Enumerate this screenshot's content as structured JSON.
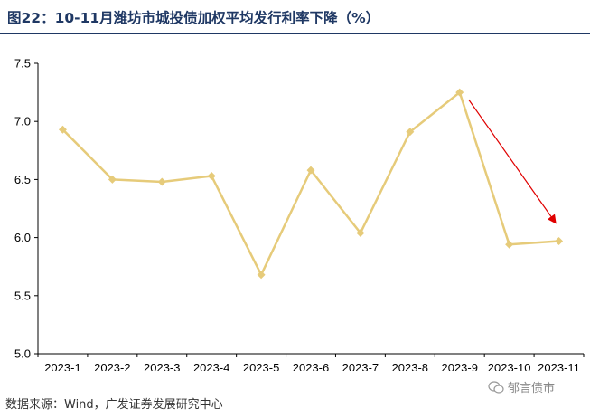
{
  "header": {
    "title": "图22：10-11月潍坊市城投债加权平均发行利率下降（%）"
  },
  "footer": {
    "source": "数据来源：Wind，广发证券发展研究中心",
    "watermark": "郁言债市"
  },
  "chart_data": {
    "type": "line",
    "title": "",
    "xlabel": "",
    "ylabel": "",
    "categories": [
      "2023-1",
      "2023-2",
      "2023-3",
      "2023-4",
      "2023-5",
      "2023-6",
      "2023-7",
      "2023-8",
      "2023-9",
      "2023-10",
      "2023-11"
    ],
    "series": [
      {
        "values": [
          6.93,
          6.5,
          6.48,
          6.53,
          5.68,
          6.58,
          6.04,
          6.91,
          7.25,
          5.94,
          5.97
        ]
      }
    ],
    "ylim": [
      5.0,
      7.5
    ],
    "yticks": [
      "5.0",
      "5.5",
      "6.0",
      "6.5",
      "7.0",
      "7.5"
    ],
    "grid": false,
    "line_color": "#e6cb7a",
    "arrow_color": "#e00000",
    "annotation": {
      "type": "arrow",
      "from": [
        "2023-9",
        7.25
      ],
      "to": [
        "2023-11",
        6.13
      ]
    }
  }
}
